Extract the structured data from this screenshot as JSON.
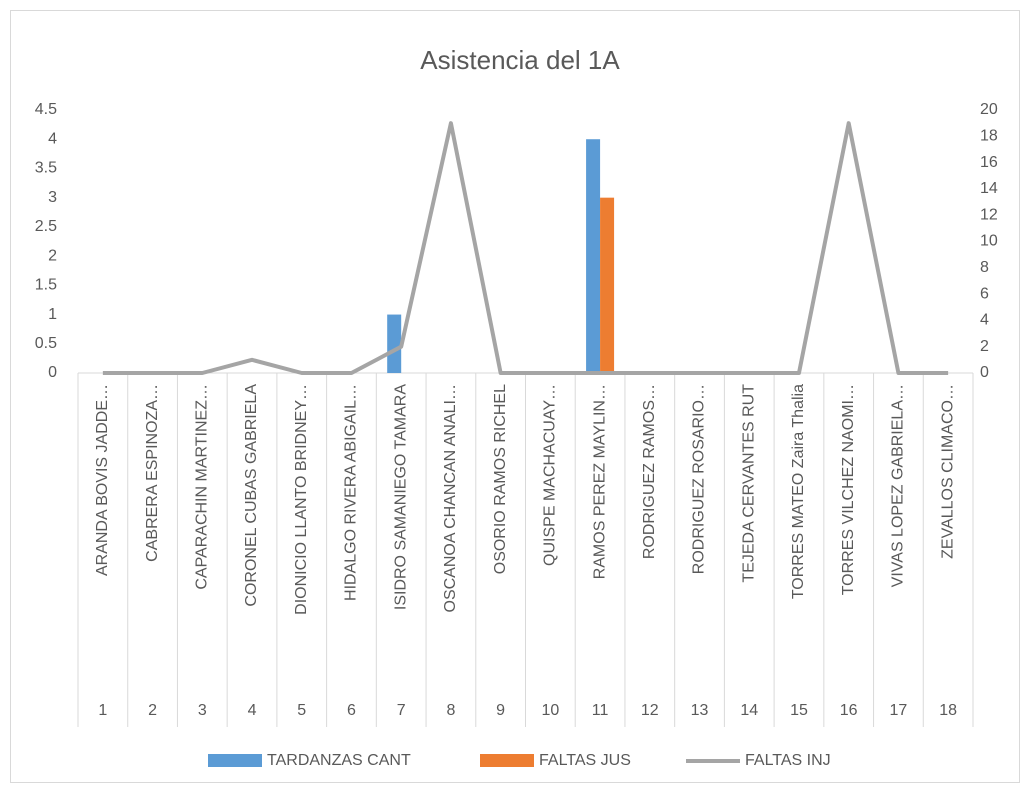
{
  "chart_data": {
    "type": "bar",
    "title": "Asistencia del 1A",
    "categories": [
      "ARANDA BOVIS JADDE…",
      "CABRERA ESPINOZA…",
      "CAPARACHIN MARTINEZ…",
      "CORONEL CUBAS GABRIELA",
      "DIONICIO LLANTO BRIDNEY…",
      "HIDALGO RIVERA ABIGAIL…",
      "ISIDRO SAMANIEGO TAMARA",
      "OSCANOA CHANCAN ANALI…",
      "OSORIO RAMOS RICHEL",
      "QUISPE MACHACUAY…",
      "RAMOS PEREZ MAYLIN…",
      "RODRIGUEZ RAMOS…",
      "RODRIGUEZ ROSARIO…",
      "TEJEDA CERVANTES RUT",
      "TORRES MATEO Zaira Thalia",
      "TORRES VILCHEZ NAOMI…",
      "VIVAS LOPEZ GABRIELA…",
      "ZEVALLOS CLIMACO…"
    ],
    "category_ids": [
      1,
      2,
      3,
      4,
      5,
      6,
      7,
      8,
      9,
      10,
      11,
      12,
      13,
      14,
      15,
      16,
      17,
      18
    ],
    "series": [
      {
        "name": "TARDANZAS CANT",
        "color": "#5b9bd5",
        "type": "bar",
        "values": [
          0,
          0,
          0,
          0,
          0,
          0,
          1,
          0,
          0,
          0,
          4,
          0,
          0,
          0,
          0,
          0,
          0,
          0
        ]
      },
      {
        "name": "FALTAS JUS",
        "color": "#ed7d31",
        "type": "bar",
        "values": [
          0,
          0,
          0,
          0,
          0,
          0,
          0,
          0,
          0,
          0,
          3,
          0,
          0,
          0,
          0,
          0,
          0,
          0
        ]
      },
      {
        "name": "FALTAS INJ",
        "color": "#a5a5a5",
        "type": "line",
        "axis": "y2",
        "values": [
          0,
          0,
          0,
          1,
          0,
          0,
          2,
          19,
          0,
          0,
          0,
          0,
          0,
          0,
          0,
          19,
          0,
          0
        ]
      }
    ],
    "ylim": [
      0,
      4.5
    ],
    "yticks": [
      0,
      0.5,
      1,
      1.5,
      2,
      2.5,
      3,
      3.5,
      4,
      4.5
    ],
    "y2lim": [
      0,
      20
    ],
    "y2ticks": [
      0,
      2,
      4,
      6,
      8,
      10,
      12,
      14,
      16,
      18,
      20
    ],
    "grid": false,
    "legend": "bottom"
  }
}
